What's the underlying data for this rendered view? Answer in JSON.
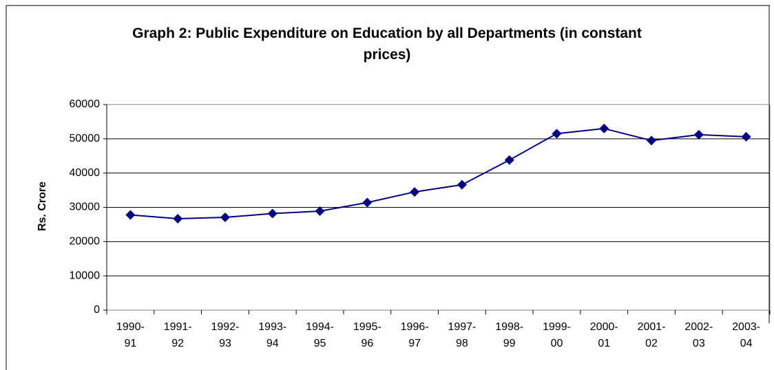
{
  "chart_data": {
    "type": "line",
    "title": "Graph 2: Public Expenditure on Education by all Departments (in constant prices)",
    "y_label": "Rs. Crore",
    "categories": [
      "1990-91",
      "1991-92",
      "1992-93",
      "1993-94",
      "1994-95",
      "1995-96",
      "1996-97",
      "1997-98",
      "1998-99",
      "1999-00",
      "2000-01",
      "2001-02",
      "2002-03",
      "2003-04"
    ],
    "series": [
      {
        "name": "Public Expenditure on Education",
        "color": "#000080",
        "values": [
          27800,
          26700,
          27100,
          28200,
          28900,
          31400,
          34500,
          36600,
          43800,
          51500,
          53000,
          49500,
          51200,
          50600
        ]
      }
    ],
    "ylim": [
      0,
      60000
    ],
    "yticks": [
      0,
      10000,
      20000,
      30000,
      40000,
      50000,
      60000
    ],
    "grid": true
  }
}
